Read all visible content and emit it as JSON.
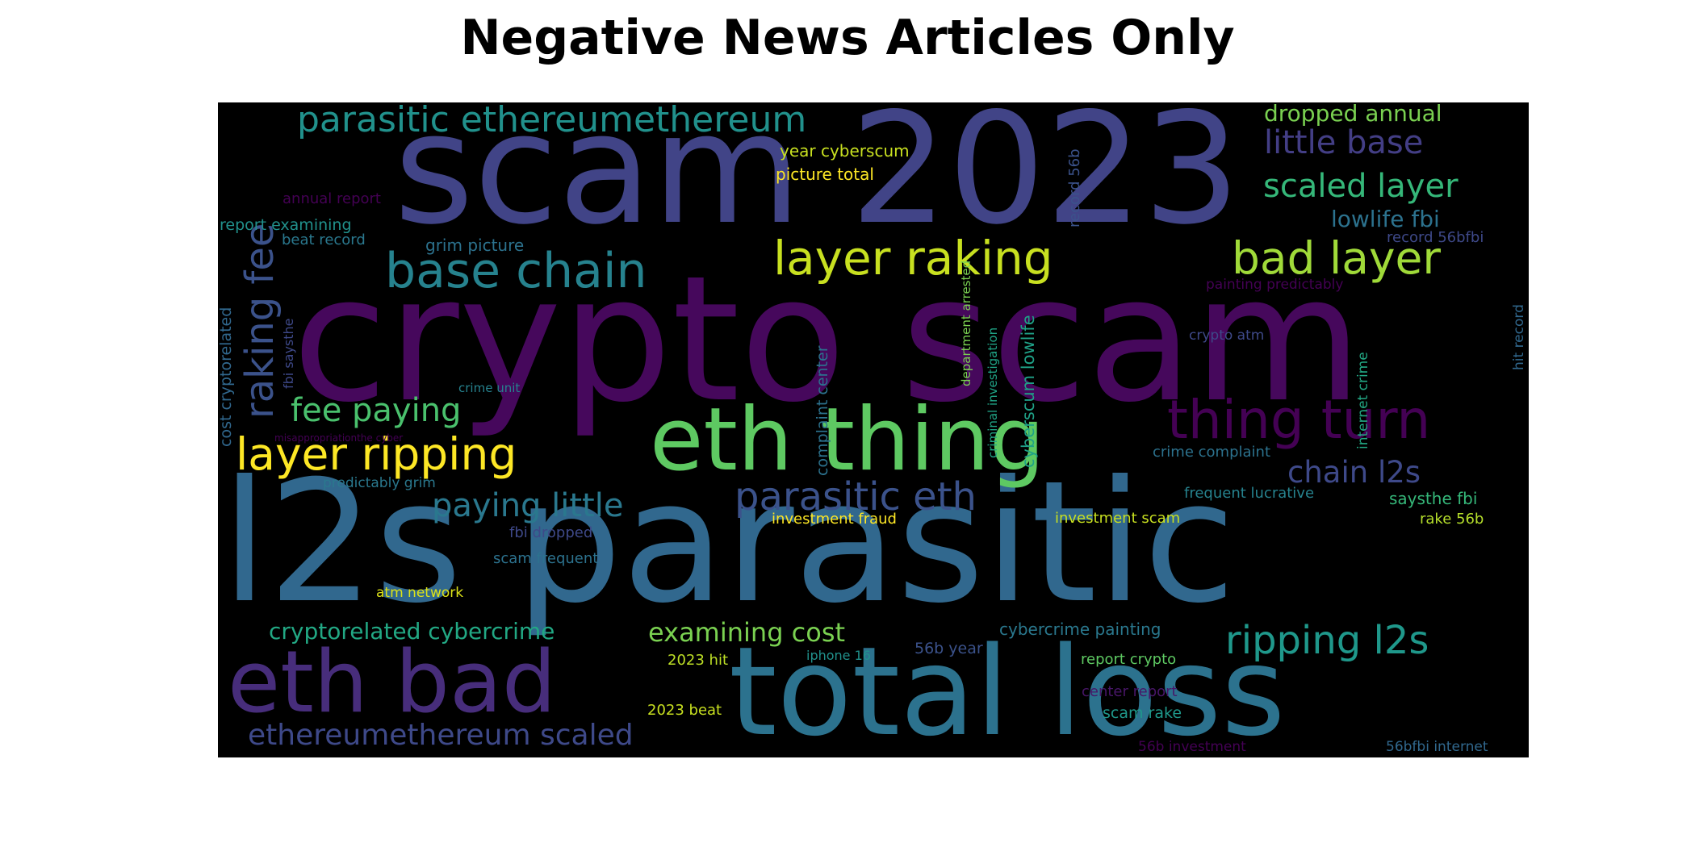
{
  "title": "Negative News Articles Only",
  "background_color": "#000000",
  "palette": "viridis",
  "words": [
    {
      "text": "crypto scam",
      "color": "#46085c"
    },
    {
      "text": "scam 2023",
      "color": "#414487"
    },
    {
      "text": "l2s parasitic",
      "color": "#31688e"
    },
    {
      "text": "total loss",
      "color": "#2c728e"
    },
    {
      "text": "eth thing",
      "color": "#5ec962"
    },
    {
      "text": "eth bad",
      "color": "#472d7b"
    },
    {
      "text": "thing turn",
      "color": "#440154"
    },
    {
      "text": "base chain",
      "color": "#26828e"
    },
    {
      "text": "layer raking",
      "color": "#c8e020"
    },
    {
      "text": "bad layer",
      "color": "#a0da39"
    },
    {
      "text": "layer ripping",
      "color": "#fde725"
    },
    {
      "text": "parasitic eth",
      "color": "#3b528b"
    },
    {
      "text": "ripping l2s",
      "color": "#1f988b"
    },
    {
      "text": "parasitic ethereumethereum",
      "color": "#21918c"
    },
    {
      "text": "ethereumethereum scaled",
      "color": "#3e4989"
    },
    {
      "text": "raking fee",
      "color": "#3b528b"
    },
    {
      "text": "fee paying",
      "color": "#4ac16d"
    },
    {
      "text": "paying little",
      "color": "#2a788e"
    },
    {
      "text": "little base",
      "color": "#433e85"
    },
    {
      "text": "scaled layer",
      "color": "#35b779"
    },
    {
      "text": "chain l2s",
      "color": "#3e4989"
    },
    {
      "text": "examining cost",
      "color": "#7ad151"
    },
    {
      "text": "cryptorelated cybercrime",
      "color": "#22a884"
    },
    {
      "text": "dropped annual",
      "color": "#7ad151"
    },
    {
      "text": "lowlife fbi",
      "color": "#2c728e"
    },
    {
      "text": "year cyberscum",
      "color": "#c8e020"
    },
    {
      "text": "picture total",
      "color": "#fde725"
    },
    {
      "text": "annual report",
      "color": "#440154"
    },
    {
      "text": "report examining",
      "color": "#21918c"
    },
    {
      "text": "beat record",
      "color": "#2a788e"
    },
    {
      "text": "grim picture",
      "color": "#2c728e"
    },
    {
      "text": "record 56b",
      "color": "#3b528b"
    },
    {
      "text": "record 56bfbi",
      "color": "#3e4989"
    },
    {
      "text": "department arrested",
      "color": "#7ad151"
    },
    {
      "text": "criminal investigation",
      "color": "#20a486"
    },
    {
      "text": "cyberscum lowlife",
      "color": "#1fa187"
    },
    {
      "text": "complaint center",
      "color": "#2c728e"
    },
    {
      "text": "cost cryptorelated",
      "color": "#31688e"
    },
    {
      "text": "fbi saysthe",
      "color": "#3e4989"
    },
    {
      "text": "painting predictably",
      "color": "#440154"
    },
    {
      "text": "crypto atm",
      "color": "#3e4989"
    },
    {
      "text": "hit record",
      "color": "#31688e"
    },
    {
      "text": "internet crime",
      "color": "#22a884"
    },
    {
      "text": "crime unit",
      "color": "#26828e"
    },
    {
      "text": "misappropriationthe cyber",
      "color": "#440154"
    },
    {
      "text": "crime complaint",
      "color": "#2c728e"
    },
    {
      "text": "predictably grim",
      "color": "#2a788e"
    },
    {
      "text": "frequent lucrative",
      "color": "#26828e"
    },
    {
      "text": "saysthe fbi",
      "color": "#35b779"
    },
    {
      "text": "fbi dropped",
      "color": "#3e4989"
    },
    {
      "text": "investment fraud",
      "color": "#fde725"
    },
    {
      "text": "investment scam",
      "color": "#c8e020"
    },
    {
      "text": "rake 56b",
      "color": "#b5de2b"
    },
    {
      "text": "scam frequent",
      "color": "#2c728e"
    },
    {
      "text": "atm network",
      "color": "#dde318"
    },
    {
      "text": "cybercrime painting",
      "color": "#2a788e"
    },
    {
      "text": "2023 hit",
      "color": "#bddf26"
    },
    {
      "text": "iphone 16",
      "color": "#21918c"
    },
    {
      "text": "56b year",
      "color": "#3b528b"
    },
    {
      "text": "report crypto",
      "color": "#5ec962"
    },
    {
      "text": "center report",
      "color": "#481668"
    },
    {
      "text": "2023 beat",
      "color": "#c8e020"
    },
    {
      "text": "scam rake",
      "color": "#1f988b"
    },
    {
      "text": "56b investment",
      "color": "#440154"
    },
    {
      "text": "56bfbi internet",
      "color": "#31688e"
    }
  ]
}
